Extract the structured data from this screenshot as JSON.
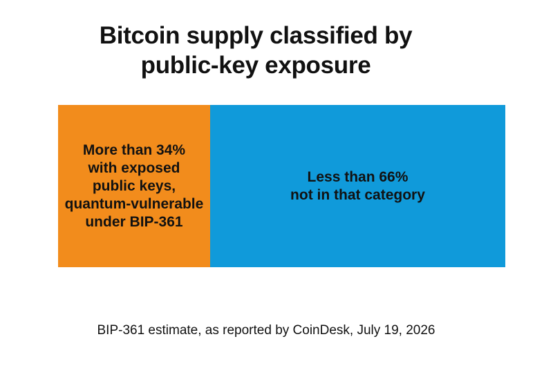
{
  "title_lines": [
    "Bitcoin supply classified by",
    "public-key exposure"
  ],
  "caption": "BIP-361 estimate, as reported by CoinDesk, July 19, 2026",
  "colors": {
    "exposed": "#F28C1C",
    "not_exposed": "#109ADA",
    "background": "#FFFFFF",
    "text": "#111111"
  },
  "chart_data": {
    "type": "bar",
    "orientation": "horizontal-stacked",
    "title": "Bitcoin supply classified by public-key exposure",
    "categories": [
      "Bitcoin supply"
    ],
    "series": [
      {
        "name": "More than 34% with exposed public keys, quantum-vulnerable under BIP-361",
        "label_lines": [
          "More than 34%",
          "with exposed",
          "public keys,",
          "quantum-vulnerable",
          "under BIP-361"
        ],
        "values": [
          34
        ],
        "color": "#F28C1C"
      },
      {
        "name": "Less than 66% not in that category",
        "label_lines": [
          "Less than 66%",
          "not in that category"
        ],
        "values": [
          66
        ],
        "color": "#109ADA"
      }
    ],
    "unit": "%",
    "xlim": [
      0,
      100
    ],
    "grid": false,
    "legend": "none"
  }
}
